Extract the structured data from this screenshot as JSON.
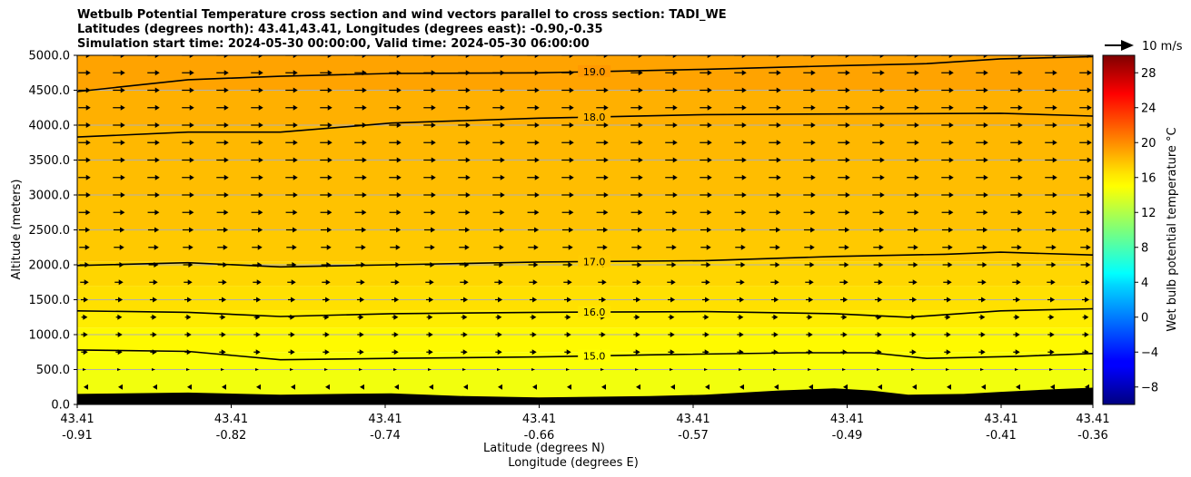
{
  "chart_data": {
    "type": "heatmap",
    "title_lines": [
      "Wetbulb Potential Temperature cross section and wind vectors parallel to cross section: TADI_WE",
      "Latitudes (degrees north): 43.41,43.41, Longitudes (degrees east): -0.90,-0.35",
      "Simulation start time: 2024-05-30 00:00:00, Valid time: 2024-05-30 06:00:00"
    ],
    "xlabel_lat": "Latitude (degrees N)",
    "xlabel_lon": "Longitude (degrees E)",
    "ylabel": "Altitude (meters)",
    "x_ticks": [
      {
        "lat": "43.41",
        "lon": "-0.91"
      },
      {
        "lat": "43.41",
        "lon": "-0.82"
      },
      {
        "lat": "43.41",
        "lon": "-0.74"
      },
      {
        "lat": "43.41",
        "lon": "-0.66"
      },
      {
        "lat": "43.41",
        "lon": "-0.57"
      },
      {
        "lat": "43.41",
        "lon": "-0.49"
      },
      {
        "lat": "43.41",
        "lon": "-0.41"
      },
      {
        "lat": "43.41",
        "lon": "-0.36"
      }
    ],
    "x_range": [
      -0.91,
      -0.36
    ],
    "y_ticks": [
      "0.0",
      "500.0",
      "1000.0",
      "1500.0",
      "2000.0",
      "2500.0",
      "3000.0",
      "3500.0",
      "4000.0",
      "4500.0",
      "5000.0"
    ],
    "ylim": [
      0,
      5000
    ],
    "grid": "horizontal",
    "colorbar": {
      "label": "Wet bulb potential temperature $^\\circ$C",
      "label_text": "Wet bulb potential temperature °C",
      "ticks": [
        "−8",
        "−4",
        "0",
        "4",
        "8",
        "12",
        "16",
        "20",
        "24",
        "28"
      ],
      "range": [
        -10,
        30
      ],
      "colormap": "jet"
    },
    "quiver_key": {
      "label": "10 m/s",
      "speed": 10
    },
    "temperature_bands": [
      {
        "altitude": 0,
        "value": 14.5
      },
      {
        "altitude": 500,
        "value": 14.8
      },
      {
        "altitude": 750,
        "value": 15.2
      },
      {
        "altitude": 1100,
        "value": 15.7
      },
      {
        "altitude": 1350,
        "value": 16.2
      },
      {
        "altitude": 1700,
        "value": 16.6
      },
      {
        "altitude": 2050,
        "value": 17.1
      },
      {
        "altitude": 2500,
        "value": 17.4
      },
      {
        "altitude": 3000,
        "value": 17.6
      },
      {
        "altitude": 3500,
        "value": 17.8
      },
      {
        "altitude": 4000,
        "value": 18.1
      },
      {
        "altitude": 4500,
        "value": 18.6
      },
      {
        "altitude": 5000,
        "value": 19.1
      }
    ],
    "contours": [
      {
        "level": 15.0,
        "label": "15.0",
        "x": [
          -0.91,
          -0.85,
          -0.8,
          -0.74,
          -0.66,
          -0.6,
          -0.52,
          -0.48,
          -0.45,
          -0.4,
          -0.36
        ],
        "y": [
          780,
          760,
          640,
          660,
          680,
          710,
          740,
          740,
          660,
          690,
          730
        ]
      },
      {
        "level": 16.0,
        "label": "16.0",
        "x": [
          -0.91,
          -0.85,
          -0.8,
          -0.74,
          -0.66,
          -0.57,
          -0.5,
          -0.46,
          -0.41,
          -0.36
        ],
        "y": [
          1340,
          1320,
          1260,
          1300,
          1320,
          1330,
          1300,
          1250,
          1340,
          1370
        ]
      },
      {
        "level": 17.0,
        "label": "17.0",
        "x": [
          -0.91,
          -0.85,
          -0.8,
          -0.74,
          -0.66,
          -0.57,
          -0.5,
          -0.44,
          -0.41,
          -0.36
        ],
        "y": [
          1990,
          2030,
          1970,
          2000,
          2040,
          2060,
          2120,
          2150,
          2180,
          2140
        ]
      },
      {
        "level": 18.0,
        "label": "18.0",
        "x": [
          -0.91,
          -0.85,
          -0.8,
          -0.74,
          -0.66,
          -0.57,
          -0.5,
          -0.41,
          -0.36
        ],
        "y": [
          3830,
          3900,
          3900,
          4030,
          4100,
          4150,
          4160,
          4170,
          4130
        ]
      },
      {
        "level": 19.0,
        "label": "19.0",
        "x": [
          -0.91,
          -0.85,
          -0.8,
          -0.74,
          -0.66,
          -0.57,
          -0.5,
          -0.45,
          -0.41,
          -0.36
        ],
        "y": [
          4480,
          4650,
          4700,
          4740,
          4750,
          4800,
          4850,
          4880,
          4950,
          4980
        ]
      }
    ],
    "terrain": {
      "x": [
        -0.91,
        -0.85,
        -0.8,
        -0.74,
        -0.7,
        -0.66,
        -0.6,
        -0.57,
        -0.53,
        -0.5,
        -0.48,
        -0.46,
        -0.43,
        -0.41,
        -0.38,
        -0.36
      ],
      "y": [
        150,
        170,
        140,
        160,
        120,
        100,
        120,
        140,
        200,
        230,
        200,
        140,
        150,
        180,
        220,
        240
      ]
    },
    "wind_row_altitudes": [
      250,
      500,
      750,
      1000,
      1250,
      1500,
      1750,
      2000,
      2250,
      2500,
      2750,
      3000,
      3250,
      3500,
      3750,
      4000,
      4250,
      4500,
      4750,
      5000
    ],
    "wind_row_speeds": [
      -1.5,
      0.5,
      5.5,
      5.5,
      5,
      6,
      7,
      8,
      8.5,
      9,
      9.5,
      10,
      10,
      10,
      10,
      10,
      10,
      10,
      10,
      10
    ]
  }
}
